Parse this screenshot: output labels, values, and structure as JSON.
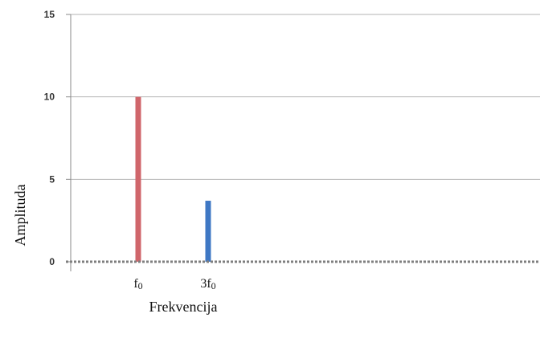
{
  "chart_data": {
    "type": "bar",
    "title": "",
    "xlabel": "Frekvencija",
    "ylabel": "Amplituda",
    "ylim": [
      0,
      15
    ],
    "yticks": [
      "0",
      "5",
      "10",
      "15"
    ],
    "grid": true,
    "categories": [
      "f0",
      "3f0"
    ],
    "series": [
      {
        "values": [
          10,
          3.7
        ],
        "colors": [
          "#d0666b",
          "#3f78c4"
        ]
      }
    ],
    "baseline_color": "#7f7f7f",
    "grid_color": "#b3b3b3"
  }
}
